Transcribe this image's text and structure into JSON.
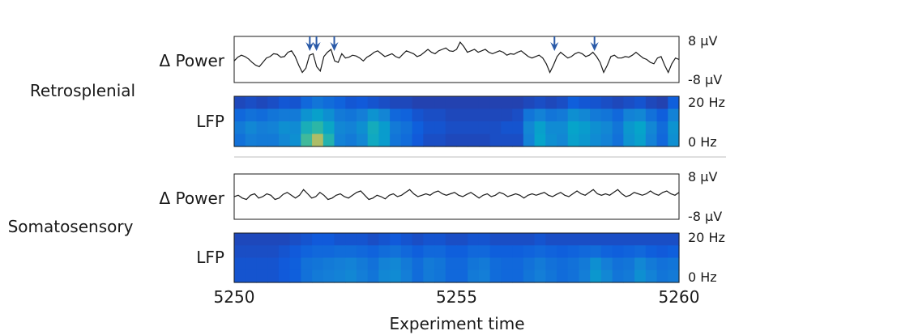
{
  "chart_data": {
    "type": "line",
    "xlabel": "Experiment time",
    "xlim": [
      5250,
      5260
    ],
    "xticks": [
      "5250",
      "5255",
      "5260"
    ],
    "regions": [
      {
        "name": "Retrosplenial",
        "power": {
          "label": "Δ Power",
          "ytick_top": "8 µV",
          "ytick_bottom": "-8 µV",
          "ylim": [
            -8,
            8
          ],
          "y": [
            -0.5,
            0.8,
            1.5,
            1.0,
            0.2,
            -1.0,
            -2.0,
            -2.5,
            -1.0,
            0.5,
            1.0,
            2.0,
            1.8,
            0.8,
            1.0,
            2.5,
            3.0,
            1.0,
            -2.0,
            -4.5,
            -3.0,
            1.5,
            2.0,
            -2.5,
            -4.0,
            1.0,
            2.5,
            3.5,
            -0.5,
            -1.0,
            2.0,
            0.5,
            0.8,
            1.5,
            1.2,
            0.5,
            -0.5,
            0.8,
            1.5,
            2.5,
            3.0,
            2.0,
            1.0,
            1.5,
            2.0,
            1.0,
            0.5,
            1.8,
            3.0,
            2.5,
            2.0,
            1.0,
            1.5,
            2.5,
            3.5,
            2.5,
            2.0,
            3.0,
            3.5,
            4.0,
            3.0,
            2.8,
            3.5,
            6.0,
            4.5,
            2.5,
            3.0,
            3.5,
            2.5,
            3.0,
            3.5,
            2.5,
            2.0,
            2.5,
            3.0,
            2.5,
            1.5,
            2.0,
            1.8,
            2.5,
            3.0,
            2.0,
            1.0,
            0.5,
            1.0,
            1.5,
            0.5,
            -1.5,
            -4.5,
            -2.0,
            1.0,
            2.5,
            1.5,
            0.5,
            1.0,
            2.0,
            2.5,
            2.0,
            1.0,
            1.5,
            2.5,
            1.0,
            -1.0,
            -4.5,
            -2.0,
            1.0,
            1.5,
            0.5,
            0.5,
            1.0,
            0.8,
            1.5,
            2.5,
            1.5,
            0.5,
            0.0,
            -1.0,
            -1.5,
            0.5,
            1.0,
            -2.0,
            -4.5,
            -1.5,
            0.5,
            0.0
          ],
          "arrows_x": [
            5251.7,
            5251.85,
            5252.25,
            5257.2,
            5258.1
          ]
        },
        "lfp": {
          "label": "LFP",
          "ytick_top": "20 Hz",
          "ytick_bottom": "0 Hz",
          "time_bins": 40,
          "bands": [
            [
              0.1,
              0.12,
              0.1,
              0.12,
              0.15,
              0.14,
              0.22,
              0.28,
              0.24,
              0.2,
              0.15,
              0.16,
              0.14,
              0.12,
              0.1,
              0.1,
              0.08,
              0.08,
              0.08,
              0.08,
              0.08,
              0.08,
              0.08,
              0.08,
              0.08,
              0.08,
              0.1,
              0.12,
              0.1,
              0.12,
              0.18,
              0.15,
              0.14,
              0.12,
              0.1,
              0.12,
              0.14,
              0.1,
              0.08,
              0.18
            ],
            [
              0.22,
              0.26,
              0.24,
              0.28,
              0.3,
              0.3,
              0.42,
              0.48,
              0.4,
              0.3,
              0.28,
              0.32,
              0.42,
              0.35,
              0.22,
              0.2,
              0.14,
              0.12,
              0.12,
              0.1,
              0.1,
              0.1,
              0.1,
              0.1,
              0.1,
              0.12,
              0.28,
              0.34,
              0.28,
              0.3,
              0.4,
              0.36,
              0.3,
              0.28,
              0.22,
              0.34,
              0.36,
              0.26,
              0.18,
              0.34
            ],
            [
              0.3,
              0.36,
              0.32,
              0.34,
              0.4,
              0.38,
              0.58,
              0.66,
              0.52,
              0.36,
              0.34,
              0.4,
              0.56,
              0.46,
              0.3,
              0.26,
              0.18,
              0.14,
              0.14,
              0.12,
              0.12,
              0.12,
              0.12,
              0.12,
              0.14,
              0.14,
              0.36,
              0.48,
              0.38,
              0.38,
              0.5,
              0.46,
              0.4,
              0.36,
              0.28,
              0.44,
              0.5,
              0.36,
              0.24,
              0.42
            ],
            [
              0.26,
              0.32,
              0.3,
              0.3,
              0.36,
              0.4,
              0.7,
              0.92,
              0.62,
              0.34,
              0.3,
              0.36,
              0.54,
              0.46,
              0.28,
              0.24,
              0.16,
              0.12,
              0.12,
              0.1,
              0.1,
              0.1,
              0.1,
              0.12,
              0.12,
              0.12,
              0.34,
              0.5,
              0.4,
              0.36,
              0.48,
              0.44,
              0.38,
              0.34,
              0.26,
              0.42,
              0.48,
              0.34,
              0.22,
              0.4
            ]
          ]
        }
      },
      {
        "name": "Somatosensory",
        "power": {
          "label": "Δ Power",
          "ytick_top": "8 µV",
          "ytick_bottom": "-8 µV",
          "ylim": [
            -8,
            8
          ],
          "y": [
            0.0,
            0.5,
            -0.5,
            -1.0,
            0.5,
            1.0,
            -0.5,
            0.0,
            1.0,
            0.5,
            -1.0,
            -0.5,
            0.8,
            1.5,
            0.5,
            -0.5,
            0.5,
            2.5,
            1.0,
            -0.5,
            0.0,
            1.5,
            0.5,
            -1.0,
            -0.5,
            0.5,
            1.0,
            0.0,
            -0.5,
            0.5,
            1.5,
            2.0,
            0.5,
            -1.0,
            -0.5,
            0.5,
            0.0,
            -0.8,
            0.5,
            1.0,
            0.0,
            0.5,
            1.5,
            2.5,
            1.0,
            0.0,
            0.5,
            1.0,
            0.5,
            1.5,
            2.0,
            1.0,
            0.5,
            1.0,
            1.5,
            0.5,
            0.0,
            0.8,
            1.5,
            0.5,
            -0.5,
            0.5,
            1.0,
            0.0,
            0.5,
            1.5,
            1.0,
            0.0,
            0.5,
            1.0,
            0.5,
            -0.5,
            0.5,
            1.0,
            0.5,
            1.0,
            1.5,
            0.5,
            0.0,
            0.8,
            1.5,
            0.5,
            0.0,
            1.0,
            2.0,
            1.0,
            0.5,
            1.5,
            2.5,
            1.0,
            0.5,
            1.0,
            0.5,
            1.5,
            2.5,
            1.0,
            0.0,
            0.5,
            1.5,
            1.0,
            0.5,
            1.0,
            2.0,
            1.0,
            0.5,
            1.5,
            2.0,
            1.0,
            0.5,
            1.5
          ]
        },
        "lfp": {
          "label": "LFP",
          "ytick_top": "20 Hz",
          "ytick_bottom": "0 Hz",
          "time_bins": 40,
          "bands": [
            [
              0.1,
              0.1,
              0.1,
              0.1,
              0.1,
              0.12,
              0.14,
              0.16,
              0.16,
              0.14,
              0.14,
              0.14,
              0.12,
              0.14,
              0.16,
              0.14,
              0.12,
              0.14,
              0.14,
              0.12,
              0.12,
              0.14,
              0.14,
              0.12,
              0.12,
              0.12,
              0.12,
              0.14,
              0.12,
              0.12,
              0.12,
              0.12,
              0.12,
              0.12,
              0.12,
              0.12,
              0.12,
              0.12,
              0.12,
              0.12
            ],
            [
              0.12,
              0.12,
              0.12,
              0.12,
              0.14,
              0.16,
              0.2,
              0.22,
              0.22,
              0.24,
              0.24,
              0.22,
              0.2,
              0.24,
              0.26,
              0.22,
              0.18,
              0.22,
              0.22,
              0.18,
              0.18,
              0.22,
              0.22,
              0.18,
              0.18,
              0.18,
              0.2,
              0.22,
              0.2,
              0.18,
              0.2,
              0.22,
              0.24,
              0.2,
              0.18,
              0.2,
              0.22,
              0.18,
              0.16,
              0.18
            ],
            [
              0.14,
              0.14,
              0.14,
              0.14,
              0.16,
              0.18,
              0.26,
              0.28,
              0.3,
              0.32,
              0.34,
              0.3,
              0.26,
              0.34,
              0.36,
              0.3,
              0.24,
              0.3,
              0.28,
              0.22,
              0.22,
              0.28,
              0.3,
              0.24,
              0.22,
              0.22,
              0.26,
              0.3,
              0.26,
              0.24,
              0.26,
              0.3,
              0.4,
              0.32,
              0.26,
              0.28,
              0.36,
              0.3,
              0.26,
              0.28
            ],
            [
              0.14,
              0.14,
              0.14,
              0.14,
              0.16,
              0.18,
              0.26,
              0.3,
              0.32,
              0.34,
              0.36,
              0.32,
              0.28,
              0.36,
              0.38,
              0.32,
              0.24,
              0.3,
              0.28,
              0.22,
              0.22,
              0.3,
              0.32,
              0.24,
              0.22,
              0.22,
              0.28,
              0.32,
              0.28,
              0.24,
              0.26,
              0.32,
              0.44,
              0.36,
              0.28,
              0.3,
              0.4,
              0.34,
              0.28,
              0.3
            ]
          ]
        }
      }
    ]
  },
  "colors": {
    "trace": "#1a1a1a",
    "arrow": "#2a5aa8",
    "frame": "#1a1a1a",
    "divider": "#bdbdbd",
    "colormap": [
      "#352a87",
      "#0f5cdd",
      "#1481d6",
      "#06a4ca",
      "#2eb7a4",
      "#87bf77",
      "#d1bb59"
    ]
  }
}
